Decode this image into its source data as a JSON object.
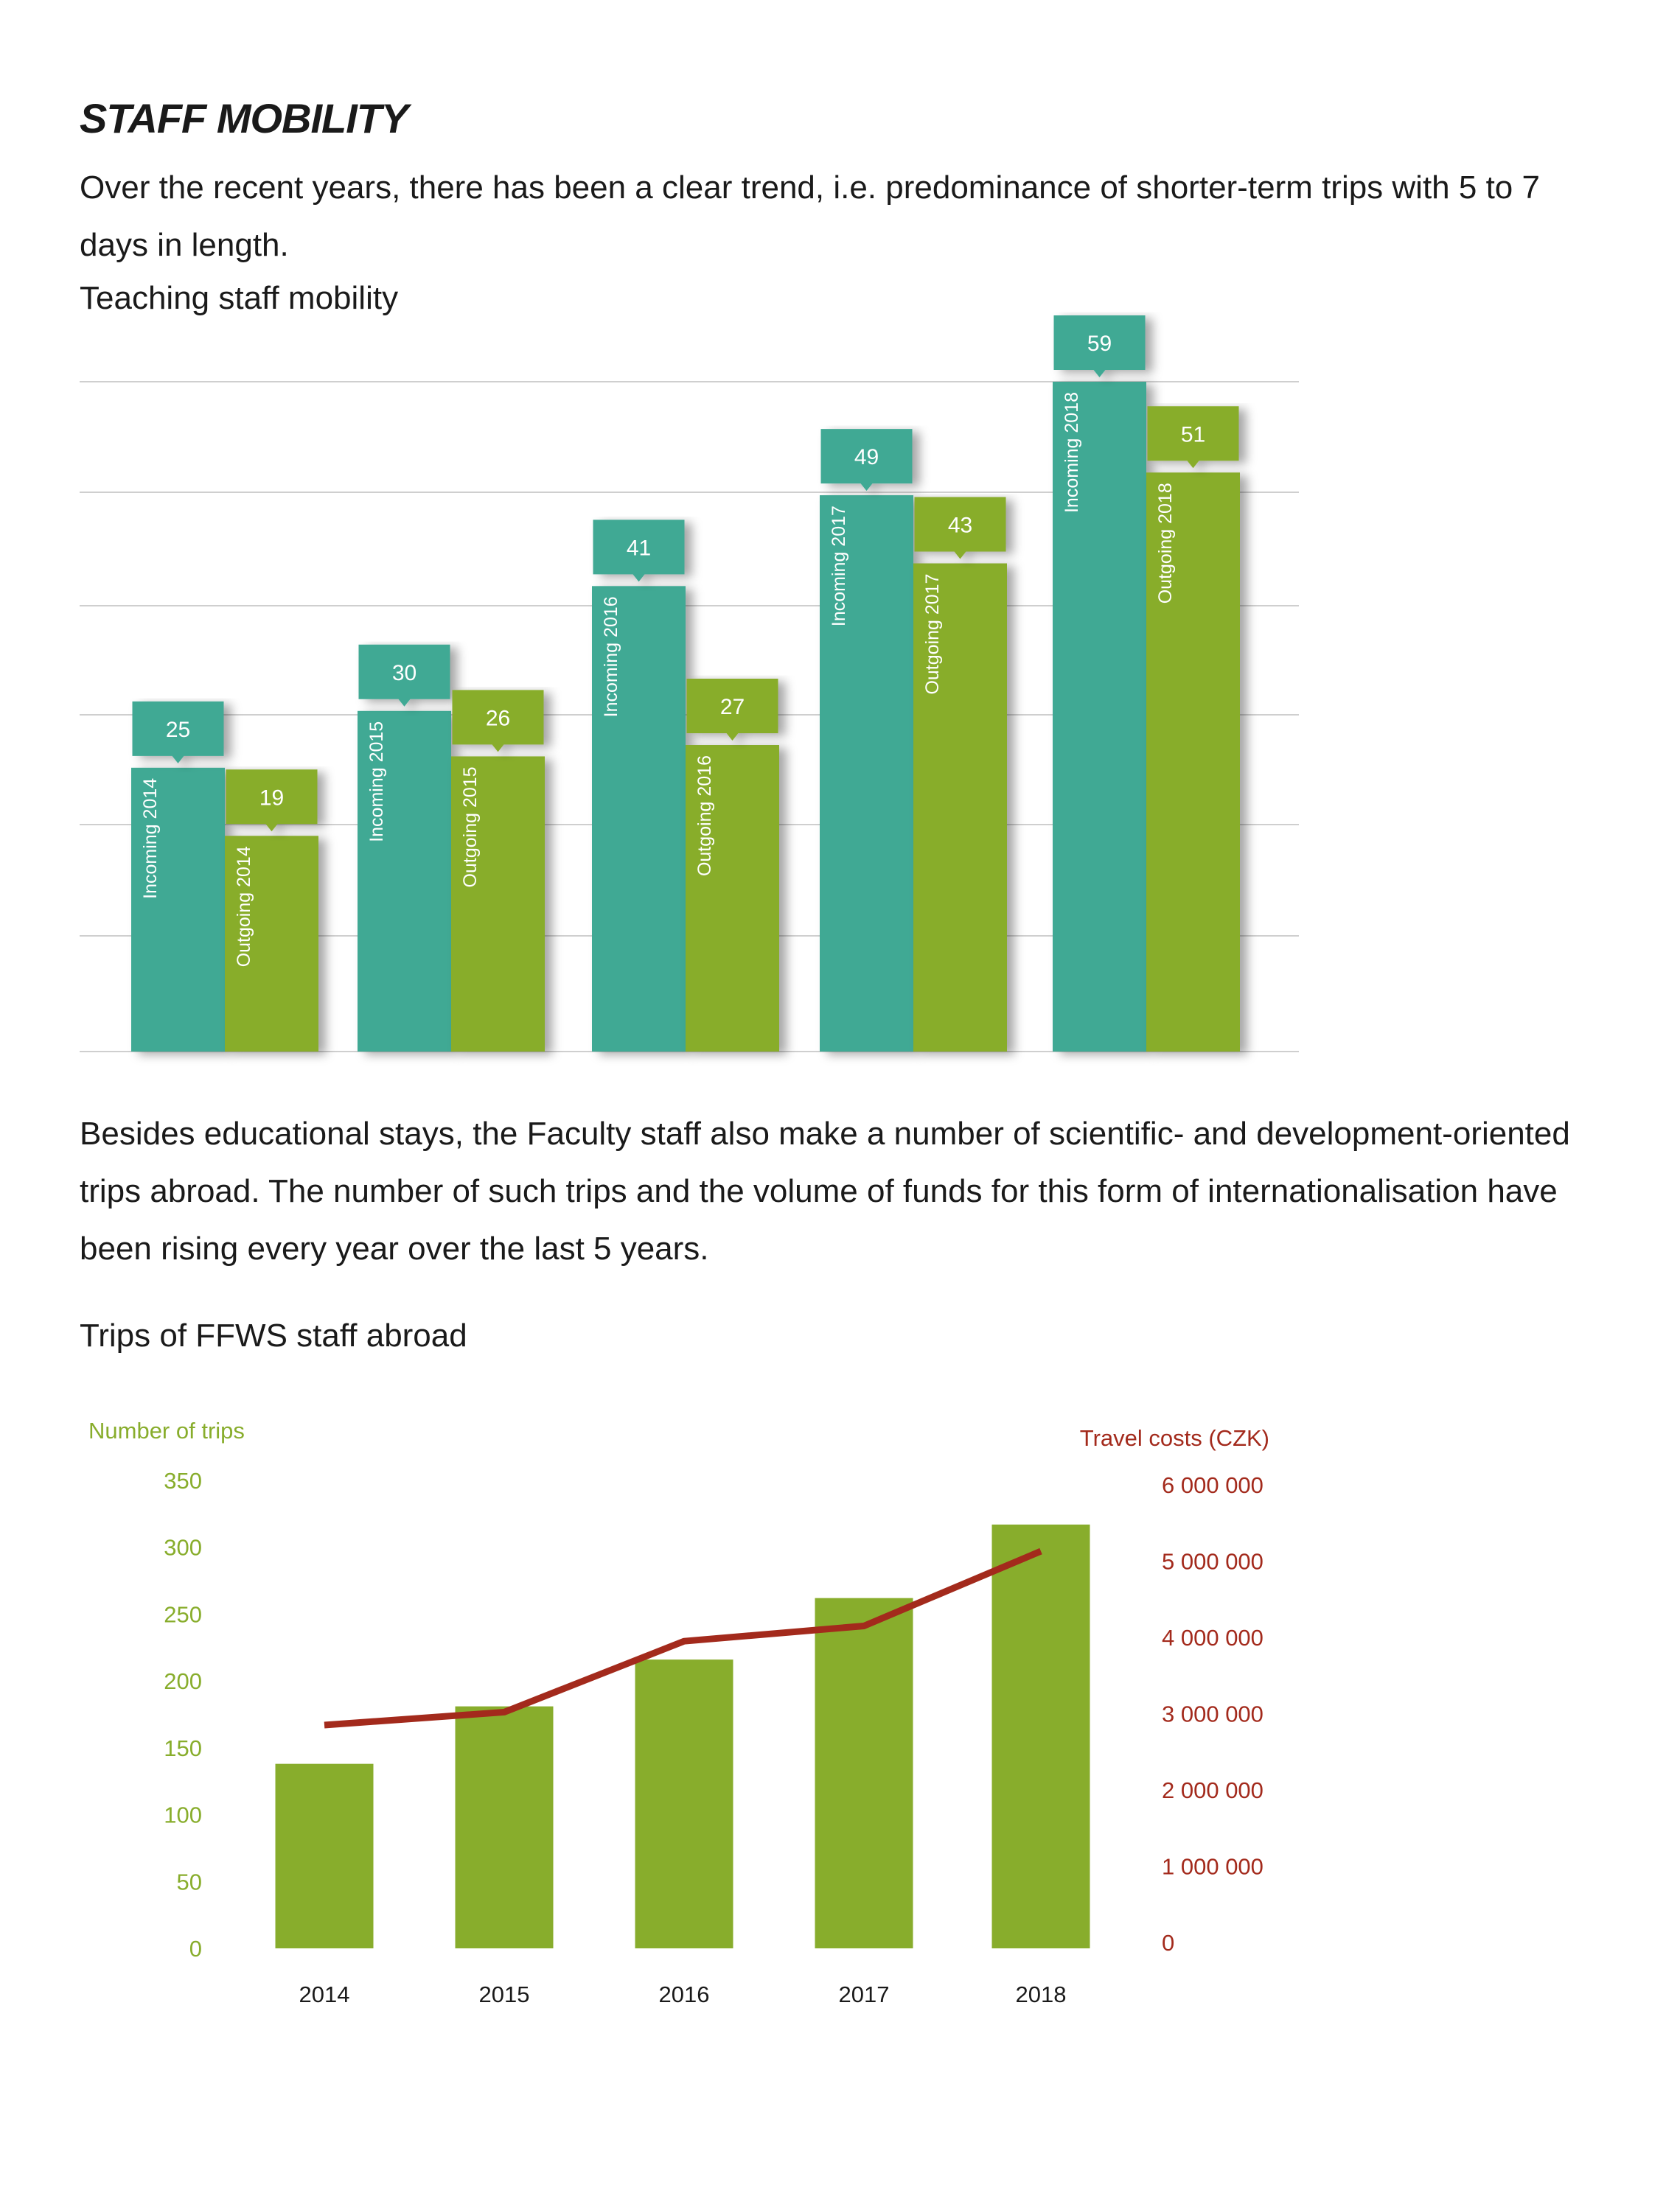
{
  "heading": "STAFF MOBILITY",
  "intro": "Over the recent years, there has been a clear trend, i.e. predominance of shorter-term trips with 5 to 7 days in length.",
  "chart1_title": "Teaching staff mobility",
  "paragraph2": "Besides educational stays, the Faculty staff also make a number of scientific- and development-oriented trips abroad. The number of such trips and the volume of funds for this form of internationalisation have been rising every year over the last 5 years.",
  "chart2_title": "Trips of FFWS staff abroad",
  "colors": {
    "incoming": "#3fa994",
    "outgoing": "#88ad2c",
    "line": "#a32a1c",
    "left_axis": "#88ad2c",
    "right_axis": "#a32a1c"
  },
  "chart_data": [
    {
      "type": "bar",
      "title": "Teaching staff mobility",
      "categories": [
        "2014",
        "2015",
        "2016",
        "2017",
        "2018"
      ],
      "series": [
        {
          "name": "Incoming",
          "values": [
            25,
            30,
            41,
            49,
            59
          ],
          "bar_labels": [
            "Incoming 2014",
            "Incoming 2015",
            "Incoming 2016",
            "Incoming 2017",
            "Incoming 2018"
          ]
        },
        {
          "name": "Outgoing",
          "values": [
            19,
            26,
            27,
            43,
            51
          ],
          "bar_labels": [
            "Outgoing 2014",
            "Outgoing 2015",
            "Outgoing 2016",
            "Outgoing 2017",
            "Outgoing 2018"
          ]
        }
      ],
      "ylim": [
        0,
        60
      ],
      "grid": true
    },
    {
      "type": "bar",
      "title": "Trips of FFWS staff abroad",
      "categories": [
        "2014",
        "2015",
        "2016",
        "2017",
        "2018"
      ],
      "series": [
        {
          "name": "Number of trips",
          "type": "bar",
          "axis": "left",
          "values": [
            138,
            181,
            216,
            262,
            317
          ]
        },
        {
          "name": "Travel costs (CZK)",
          "type": "line",
          "axis": "right",
          "values": [
            2850000,
            3020000,
            3950000,
            4150000,
            5130000
          ]
        }
      ],
      "ylabel_left": "Number of trips",
      "ylabel_right": "Travel costs (CZK)",
      "ylim_left": [
        0,
        350
      ],
      "ylim_right": [
        0,
        6000000
      ],
      "yticks_left": [
        "350",
        "300",
        "250",
        "200",
        "150",
        "100",
        "50",
        "0"
      ],
      "yticks_right": [
        "6 000 000",
        "5 000 000",
        "4 000 000",
        "3 000 000",
        "2 000 000",
        "1 000 000",
        "0"
      ],
      "grid": false
    }
  ]
}
